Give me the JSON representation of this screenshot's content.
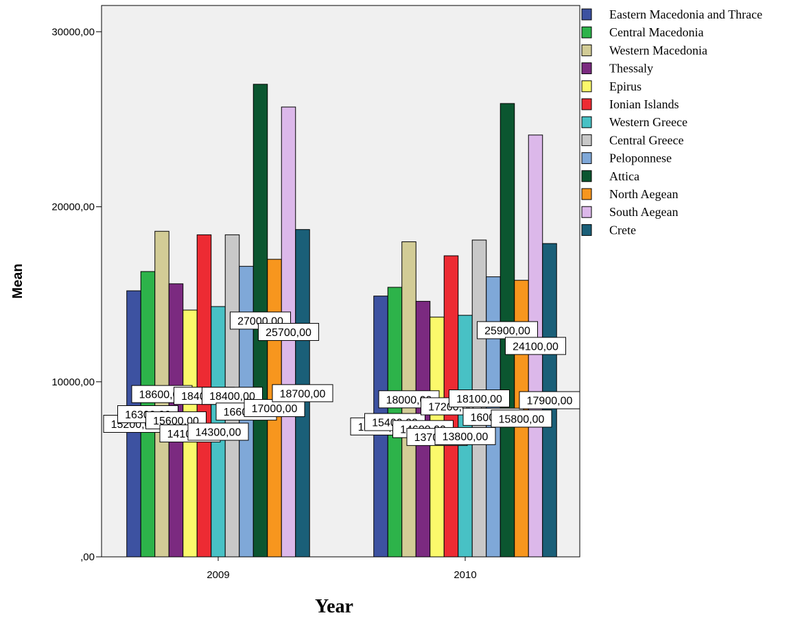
{
  "chart_data": {
    "type": "bar",
    "xlabel": "Year",
    "ylabel": "Mean",
    "categories": [
      "2009",
      "2010"
    ],
    "ylim": [
      0,
      31500
    ],
    "y_ticks": [
      0,
      10000,
      20000,
      30000
    ],
    "y_tick_labels": [
      ",00",
      "10000,00",
      "20000,00",
      "30000,00"
    ],
    "legend_position": "right",
    "grid": false,
    "plot_background": "#f0f0f0",
    "series": [
      {
        "name": "Eastern Macedonia and Thrace",
        "color": "#3d52a1",
        "values": [
          15200,
          14900
        ],
        "labels": [
          "15200,00",
          "14900,00"
        ]
      },
      {
        "name": "Central Macedonia",
        "color": "#2db34a",
        "values": [
          16300,
          15400
        ],
        "labels": [
          "16300,00",
          "15400,00"
        ]
      },
      {
        "name": "Western Macedonia",
        "color": "#d2cc96",
        "values": [
          18600,
          18000
        ],
        "labels": [
          "18600,00",
          "18000,00"
        ]
      },
      {
        "name": "Thessaly",
        "color": "#7b2a80",
        "values": [
          15600,
          14600
        ],
        "labels": [
          "15600,00",
          "14600,00"
        ]
      },
      {
        "name": "Epirus",
        "color": "#fbf96b",
        "values": [
          14100,
          13700
        ],
        "labels": [
          "14100,00",
          "13700,00"
        ]
      },
      {
        "name": "Ionian Islands",
        "color": "#ed2b33",
        "values": [
          18400,
          17200
        ],
        "labels": [
          "18400,00",
          "17200,00"
        ]
      },
      {
        "name": "Western Greece",
        "color": "#48c1c5",
        "values": [
          14300,
          13800
        ],
        "labels": [
          "14300,00",
          "13800,00"
        ]
      },
      {
        "name": "Central Greece",
        "color": "#c8c8c8",
        "values": [
          18400,
          18100
        ],
        "labels": [
          "18400,00",
          "18100,00"
        ]
      },
      {
        "name": "Peloponnese",
        "color": "#7fa8d8",
        "values": [
          16600,
          16000
        ],
        "labels": [
          "16600,00",
          "16000,00"
        ]
      },
      {
        "name": "Attica",
        "color": "#0b5630",
        "values": [
          27000,
          25900
        ],
        "labels": [
          "27000,00",
          "25900,00"
        ]
      },
      {
        "name": "North Aegean",
        "color": "#f7961e",
        "values": [
          17000,
          15800
        ],
        "labels": [
          "17000,00",
          "15800,00"
        ]
      },
      {
        "name": "South Aegean",
        "color": "#dcb8ea",
        "values": [
          25700,
          24100
        ],
        "labels": [
          "25700,00",
          "24100,00"
        ]
      },
      {
        "name": "Crete",
        "color": "#1a5f78",
        "values": [
          18700,
          17900
        ],
        "labels": [
          "18700,00",
          "17900,00"
        ]
      }
    ]
  }
}
